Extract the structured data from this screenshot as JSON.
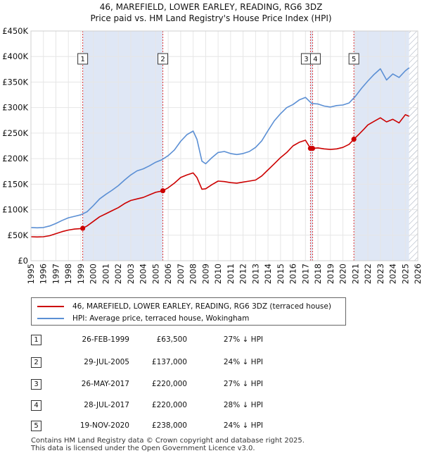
{
  "chart_data": {
    "type": "line",
    "title": "46, MAREFIELD, LOWER EARLEY, READING, RG6 3DZ",
    "subtitle": "Price paid vs. HM Land Registry's House Price Index (HPI)",
    "xlim": [
      1995,
      2026
    ],
    "ylim": [
      0,
      450000
    ],
    "x_ticks": [
      1995,
      1996,
      1997,
      1998,
      1999,
      2000,
      2001,
      2002,
      2003,
      2004,
      2005,
      2006,
      2007,
      2008,
      2009,
      2010,
      2011,
      2012,
      2013,
      2014,
      2015,
      2016,
      2017,
      2018,
      2019,
      2020,
      2021,
      2022,
      2023,
      2024,
      2025,
      2026
    ],
    "x_tick_labels": [
      "1995",
      "1996",
      "1997",
      "1998",
      "1999",
      "2000",
      "2001",
      "2002",
      "2003",
      "2004",
      "2005",
      "2006",
      "2007",
      "2008",
      "2009",
      "2010",
      "2011",
      "2012",
      "2013",
      "2014",
      "2015",
      "2016",
      "2017",
      "2018",
      "2019",
      "2020",
      "2021",
      "2022",
      "2023",
      "2024",
      "2025",
      "2026"
    ],
    "y_ticks": [
      0,
      50000,
      100000,
      150000,
      200000,
      250000,
      300000,
      350000,
      400000,
      450000
    ],
    "y_tick_labels": [
      "£0",
      "£50K",
      "£100K",
      "£150K",
      "£200K",
      "£250K",
      "£300K",
      "£350K",
      "£400K",
      "£450K"
    ],
    "shaded_periods": [
      [
        1999.15,
        2005.57
      ],
      [
        2017.4,
        2017.57
      ],
      [
        2020.88,
        2025.3
      ]
    ],
    "future_hatch_start": 2025.3,
    "colors": {
      "price": "#cc0000",
      "hpi": "#5b8fd4",
      "shade": "#dfe7f5",
      "marker_line": "#dd3333",
      "grid": "#ffffff",
      "plot_bg": "#ffffff"
    },
    "series": [
      {
        "name": "46, MAREFIELD, LOWER EARLEY, READING, RG6 3DZ (terraced house)",
        "key": "price",
        "x": [
          1995.0,
          1995.5,
          1996.0,
          1996.5,
          1997.0,
          1997.5,
          1998.0,
          1998.5,
          1999.0,
          1999.15,
          1999.5,
          2000.0,
          2000.5,
          2001.0,
          2001.5,
          2002.0,
          2002.5,
          2003.0,
          2003.5,
          2004.0,
          2004.5,
          2005.0,
          2005.57,
          2006.0,
          2006.5,
          2007.0,
          2007.5,
          2008.0,
          2008.3,
          2008.7,
          2009.0,
          2009.5,
          2010.0,
          2010.5,
          2011.0,
          2011.5,
          2012.0,
          2012.5,
          2013.0,
          2013.5,
          2014.0,
          2014.5,
          2015.0,
          2015.5,
          2016.0,
          2016.5,
          2017.0,
          2017.4,
          2017.57,
          2018.0,
          2018.5,
          2019.0,
          2019.5,
          2020.0,
          2020.5,
          2020.88,
          2021.3,
          2021.7,
          2022.0,
          2022.5,
          2023.0,
          2023.5,
          2024.0,
          2024.5,
          2025.0,
          2025.3
        ],
        "values": [
          47000,
          46500,
          47000,
          49000,
          53000,
          57000,
          60000,
          62000,
          63000,
          63500,
          68000,
          77000,
          86000,
          92000,
          98000,
          104000,
          112000,
          118000,
          121000,
          124000,
          129000,
          134000,
          137000,
          143000,
          152000,
          163000,
          168000,
          172000,
          163000,
          140000,
          141000,
          149000,
          156000,
          155000,
          153000,
          152000,
          154000,
          156000,
          158000,
          166000,
          178000,
          190000,
          202000,
          212000,
          225000,
          232000,
          236000,
          220000,
          220000,
          221000,
          219000,
          218000,
          219000,
          222000,
          228000,
          238000,
          248000,
          258000,
          266000,
          273000,
          280000,
          272000,
          277000,
          270000,
          286000,
          283000
        ]
      },
      {
        "name": "HPI: Average price, terraced house, Wokingham",
        "key": "hpi",
        "x": [
          1995.0,
          1995.5,
          1996.0,
          1996.5,
          1997.0,
          1997.5,
          1998.0,
          1998.5,
          1999.0,
          1999.5,
          2000.0,
          2000.5,
          2001.0,
          2001.5,
          2002.0,
          2002.5,
          2003.0,
          2003.5,
          2004.0,
          2004.5,
          2005.0,
          2005.5,
          2006.0,
          2006.5,
          2007.0,
          2007.5,
          2008.0,
          2008.3,
          2008.7,
          2009.0,
          2009.5,
          2010.0,
          2010.5,
          2011.0,
          2011.5,
          2012.0,
          2012.5,
          2013.0,
          2013.5,
          2014.0,
          2014.5,
          2015.0,
          2015.5,
          2016.0,
          2016.5,
          2017.0,
          2017.5,
          2018.0,
          2018.5,
          2019.0,
          2019.5,
          2020.0,
          2020.5,
          2021.0,
          2021.5,
          2022.0,
          2022.5,
          2023.0,
          2023.5,
          2024.0,
          2024.5,
          2025.0,
          2025.3
        ],
        "values": [
          65000,
          64500,
          65000,
          68000,
          73000,
          79000,
          84000,
          87000,
          90000,
          96000,
          108000,
          121000,
          130000,
          138000,
          147000,
          158000,
          168000,
          176000,
          180000,
          186000,
          193000,
          198000,
          206000,
          217000,
          234000,
          247000,
          254000,
          238000,
          195000,
          190000,
          202000,
          212000,
          214000,
          210000,
          208000,
          210000,
          214000,
          222000,
          235000,
          255000,
          274000,
          288000,
          300000,
          306000,
          315000,
          320000,
          308000,
          307000,
          303000,
          301000,
          304000,
          305000,
          309000,
          322000,
          338000,
          352000,
          365000,
          376000,
          354000,
          366000,
          359000,
          372000,
          378000
        ]
      }
    ],
    "markers": [
      {
        "label": "1",
        "x": 1999.15,
        "y": 63500
      },
      {
        "label": "2",
        "x": 2005.57,
        "y": 137000
      },
      {
        "label": "3",
        "x": 2017.4,
        "y": 220000
      },
      {
        "label": "4",
        "x": 2017.57,
        "y": 220000
      },
      {
        "label": "5",
        "x": 2020.88,
        "y": 238000
      }
    ],
    "marker_boxes": [
      {
        "label": "1",
        "x": 1999.15
      },
      {
        "label": "2",
        "x": 2005.57
      },
      {
        "label": "3",
        "x": 2017.4
      },
      {
        "label": "4",
        "x": 2017.57
      },
      {
        "label": "5",
        "x": 2020.88
      }
    ]
  },
  "legend": {
    "price_label": "46, MAREFIELD, LOWER EARLEY, READING, RG6 3DZ (terraced house)",
    "hpi_label": "HPI: Average price, terraced house, Wokingham"
  },
  "transactions": [
    {
      "num": "1",
      "date": "26-FEB-1999",
      "price": "£63,500",
      "hpi": "27% ↓ HPI"
    },
    {
      "num": "2",
      "date": "29-JUL-2005",
      "price": "£137,000",
      "hpi": "24% ↓ HPI"
    },
    {
      "num": "3",
      "date": "26-MAY-2017",
      "price": "£220,000",
      "hpi": "27% ↓ HPI"
    },
    {
      "num": "4",
      "date": "28-JUL-2017",
      "price": "£220,000",
      "hpi": "28% ↓ HPI"
    },
    {
      "num": "5",
      "date": "19-NOV-2020",
      "price": "£238,000",
      "hpi": "24% ↓ HPI"
    }
  ],
  "footer": {
    "line1": "Contains HM Land Registry data © Crown copyright and database right 2025.",
    "line2": "This data is licensed under the Open Government Licence v3.0."
  }
}
